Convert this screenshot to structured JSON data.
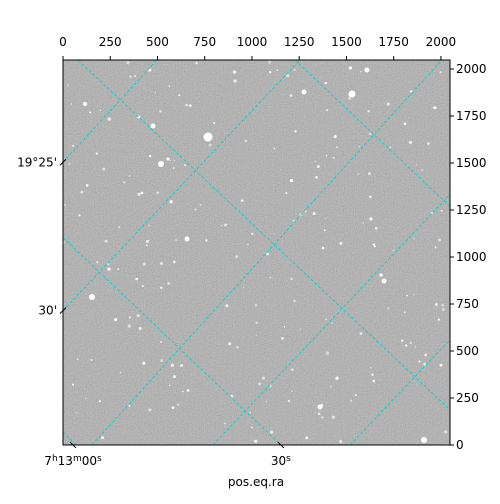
{
  "chart_data": {
    "type": "image",
    "xlabel": "pos.eq.ra",
    "xlim": [
      0,
      2048
    ],
    "ylim": [
      0,
      2048
    ],
    "xticks": [
      0,
      250,
      500,
      750,
      1000,
      1250,
      1500,
      1750,
      2000
    ],
    "yticks": [
      0,
      250,
      500,
      750,
      1000,
      1250,
      1500,
      1750,
      2000
    ],
    "ra_ticks": [
      {
        "value": 53,
        "label": "7h13m00s"
      },
      {
        "value": 1153,
        "label": "30s"
      }
    ],
    "dec_ticks": [
      {
        "value": 1504,
        "label": "19°25'"
      },
      {
        "value": 715,
        "label": "30'"
      }
    ],
    "grid_color": "#00d0d0",
    "grid_lines": [
      [
        79,
        2048,
        2048,
        187
      ],
      [
        1228,
        2048,
        2048,
        1269
      ],
      [
        0,
        1104,
        1153,
        0
      ],
      [
        0,
        69,
        69,
        0
      ],
      [
        0,
        1504,
        497,
        2048
      ],
      [
        0,
        715,
        1254,
        2048
      ],
      [
        153,
        0,
        2005,
        2048
      ],
      [
        794,
        0,
        2048,
        1333
      ],
      [
        1519,
        0,
        2048,
        560
      ]
    ]
  }
}
